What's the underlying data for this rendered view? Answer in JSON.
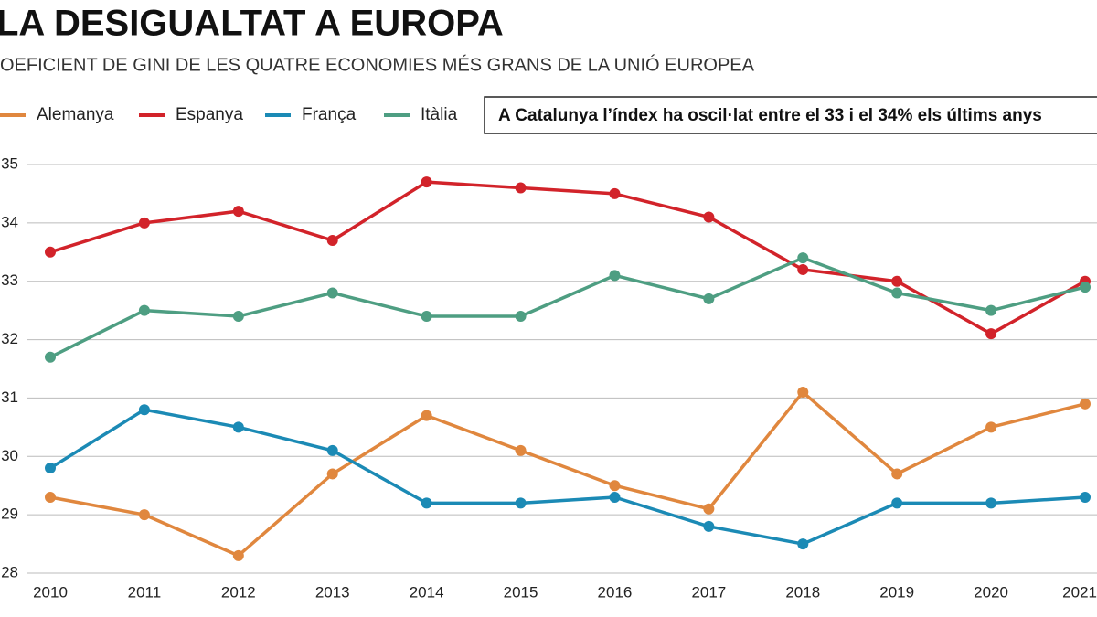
{
  "chart_data": {
    "type": "line",
    "title": "LA DESIGUALTAT A EUROPA",
    "subtitle": "OEFICIENT DE GINI DE LES QUATRE ECONOMIES MÉS GRANS DE LA UNIÓ EUROPEA",
    "annotation": "A Catalunya l’índex ha oscil·lat entre el 33 i el 34% els últims anys",
    "categories": [
      "2010",
      "2011",
      "2012",
      "2013",
      "2014",
      "2015",
      "2016",
      "2017",
      "2018",
      "2019",
      "2020",
      "2021"
    ],
    "series": [
      {
        "name": "Alemanya",
        "color": "#e0873e",
        "values": [
          29.3,
          29.0,
          28.3,
          29.7,
          30.7,
          30.1,
          29.5,
          29.1,
          31.1,
          29.7,
          30.5,
          30.9
        ]
      },
      {
        "name": "Espanya",
        "color": "#d2232a",
        "values": [
          33.5,
          34.0,
          34.2,
          33.7,
          34.7,
          34.6,
          34.5,
          34.1,
          33.2,
          33.0,
          32.1,
          33.0
        ]
      },
      {
        "name": "França",
        "color": "#1b8ab5",
        "values": [
          29.8,
          30.8,
          30.5,
          30.1,
          29.2,
          29.2,
          29.3,
          28.8,
          28.5,
          29.2,
          29.2,
          29.3
        ]
      },
      {
        "name": "Itàlia",
        "color": "#4e9e82",
        "values": [
          31.7,
          32.5,
          32.4,
          32.8,
          32.4,
          32.4,
          33.1,
          32.7,
          33.4,
          32.8,
          32.5,
          32.9
        ]
      }
    ],
    "ylim": [
      28,
      35
    ],
    "yticks": [
      28,
      29,
      30,
      31,
      32,
      33,
      34,
      35
    ],
    "grid": true
  }
}
